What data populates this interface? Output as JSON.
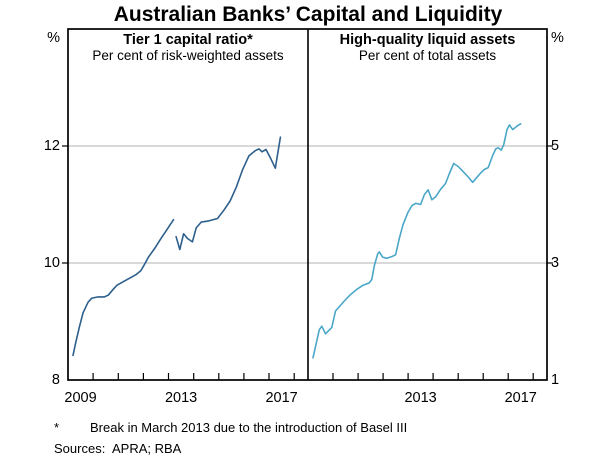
{
  "title": "Australian Banks’ Capital and Liquidity",
  "footnotes": {
    "marker": "*",
    "note": "Break in March 2013 due to the introduction of Basel III",
    "sources_label": "Sources:",
    "sources": "APRA; RBA"
  },
  "colors": {
    "tier1_line": "#2d5f8d",
    "hqla_line": "#4ba7c7",
    "gridline": "#b3b3b3",
    "axis": "#000000",
    "text": "#000000",
    "background": "#ffffff"
  },
  "chart_data": [
    {
      "type": "line",
      "panel": "left",
      "title": "Tier 1 capital ratio*",
      "subtitle": "Per cent of risk-weighted assets",
      "unit": "%",
      "xlim": [
        2009.0,
        2018.55
      ],
      "ylim": [
        8,
        14
      ],
      "yticks": [
        8,
        10,
        12
      ],
      "ytick_labels": [
        "8",
        "10",
        "12"
      ],
      "xticks": [
        2010,
        2011,
        2012,
        2013,
        2014,
        2015,
        2016,
        2017,
        2018
      ],
      "xtick_labels": [
        {
          "t": 2009.5,
          "label": "2009"
        },
        {
          "t": 2013.5,
          "label": "2013"
        },
        {
          "t": 2017.5,
          "label": "2017"
        }
      ],
      "grid": "horizontal-only",
      "series": [
        {
          "name": "Tier 1 capital ratio",
          "color_key": "tier1_line",
          "break_note": "series break at March 2013",
          "segments": [
            [
              [
                2009.2,
                8.42
              ],
              [
                2009.3,
                8.62
              ],
              [
                2009.45,
                8.9
              ],
              [
                2009.6,
                9.15
              ],
              [
                2009.8,
                9.33
              ],
              [
                2009.95,
                9.4
              ],
              [
                2010.2,
                9.42
              ],
              [
                2010.45,
                9.42
              ],
              [
                2010.6,
                9.45
              ],
              [
                2010.8,
                9.55
              ],
              [
                2010.95,
                9.62
              ],
              [
                2011.2,
                9.68
              ],
              [
                2011.45,
                9.74
              ],
              [
                2011.7,
                9.8
              ],
              [
                2011.9,
                9.87
              ],
              [
                2012.05,
                9.98
              ],
              [
                2012.2,
                10.1
              ],
              [
                2012.45,
                10.25
              ],
              [
                2012.7,
                10.42
              ],
              [
                2012.95,
                10.58
              ],
              [
                2013.2,
                10.74
              ]
            ],
            [
              [
                2013.3,
                10.45
              ],
              [
                2013.45,
                10.23
              ],
              [
                2013.6,
                10.5
              ],
              [
                2013.75,
                10.42
              ],
              [
                2013.95,
                10.36
              ],
              [
                2014.1,
                10.6
              ],
              [
                2014.3,
                10.7
              ],
              [
                2014.6,
                10.72
              ],
              [
                2014.95,
                10.76
              ],
              [
                2015.2,
                10.9
              ],
              [
                2015.45,
                11.06
              ],
              [
                2015.7,
                11.3
              ],
              [
                2015.95,
                11.6
              ],
              [
                2016.2,
                11.83
              ],
              [
                2016.45,
                11.92
              ],
              [
                2016.6,
                11.95
              ],
              [
                2016.72,
                11.9
              ],
              [
                2016.88,
                11.94
              ],
              [
                2017.05,
                11.8
              ],
              [
                2017.25,
                11.62
              ],
              [
                2017.45,
                12.15
              ]
            ]
          ]
        }
      ]
    },
    {
      "type": "line",
      "panel": "right",
      "title": "High-quality liquid assets",
      "subtitle": "Per cent of total assets",
      "unit": "%",
      "xlim": [
        2009.0,
        2018.55
      ],
      "ylim": [
        1,
        7
      ],
      "yticks": [
        1,
        3,
        5
      ],
      "ytick_labels": [
        "1",
        "3",
        "5"
      ],
      "xticks": [
        2010,
        2011,
        2012,
        2013,
        2014,
        2015,
        2016,
        2017,
        2018
      ],
      "xtick_labels": [
        {
          "t": 2013.5,
          "label": "2013"
        },
        {
          "t": 2017.5,
          "label": "2017"
        }
      ],
      "grid": "horizontal-only",
      "series": [
        {
          "name": "High-quality liquid assets",
          "color_key": "hqla_line",
          "segments": [
            [
              [
                2009.2,
                1.38
              ],
              [
                2009.45,
                1.86
              ],
              [
                2009.55,
                1.92
              ],
              [
                2009.7,
                1.79
              ],
              [
                2009.95,
                1.9
              ],
              [
                2010.1,
                2.18
              ],
              [
                2010.45,
                2.35
              ],
              [
                2010.7,
                2.46
              ],
              [
                2010.95,
                2.55
              ],
              [
                2011.2,
                2.62
              ],
              [
                2011.45,
                2.66
              ],
              [
                2011.55,
                2.72
              ],
              [
                2011.65,
                2.95
              ],
              [
                2011.78,
                3.15
              ],
              [
                2011.85,
                3.19
              ],
              [
                2011.98,
                3.1
              ],
              [
                2012.15,
                3.08
              ],
              [
                2012.35,
                3.11
              ],
              [
                2012.5,
                3.14
              ],
              [
                2012.65,
                3.42
              ],
              [
                2012.8,
                3.66
              ],
              [
                2013.0,
                3.87
              ],
              [
                2013.15,
                3.98
              ],
              [
                2013.3,
                4.02
              ],
              [
                2013.5,
                4.0
              ],
              [
                2013.65,
                4.17
              ],
              [
                2013.8,
                4.25
              ],
              [
                2013.95,
                4.08
              ],
              [
                2014.1,
                4.13
              ],
              [
                2014.3,
                4.26
              ],
              [
                2014.5,
                4.36
              ],
              [
                2014.65,
                4.53
              ],
              [
                2014.82,
                4.7
              ],
              [
                2015.0,
                4.65
              ],
              [
                2015.2,
                4.56
              ],
              [
                2015.4,
                4.47
              ],
              [
                2015.58,
                4.38
              ],
              [
                2015.72,
                4.45
              ],
              [
                2015.88,
                4.53
              ],
              [
                2016.05,
                4.6
              ],
              [
                2016.2,
                4.63
              ],
              [
                2016.38,
                4.84
              ],
              [
                2016.5,
                4.95
              ],
              [
                2016.6,
                4.97
              ],
              [
                2016.72,
                4.93
              ],
              [
                2016.82,
                5.02
              ],
              [
                2016.95,
                5.28
              ],
              [
                2017.05,
                5.36
              ],
              [
                2017.18,
                5.28
              ],
              [
                2017.35,
                5.34
              ],
              [
                2017.5,
                5.38
              ]
            ]
          ]
        }
      ]
    }
  ]
}
